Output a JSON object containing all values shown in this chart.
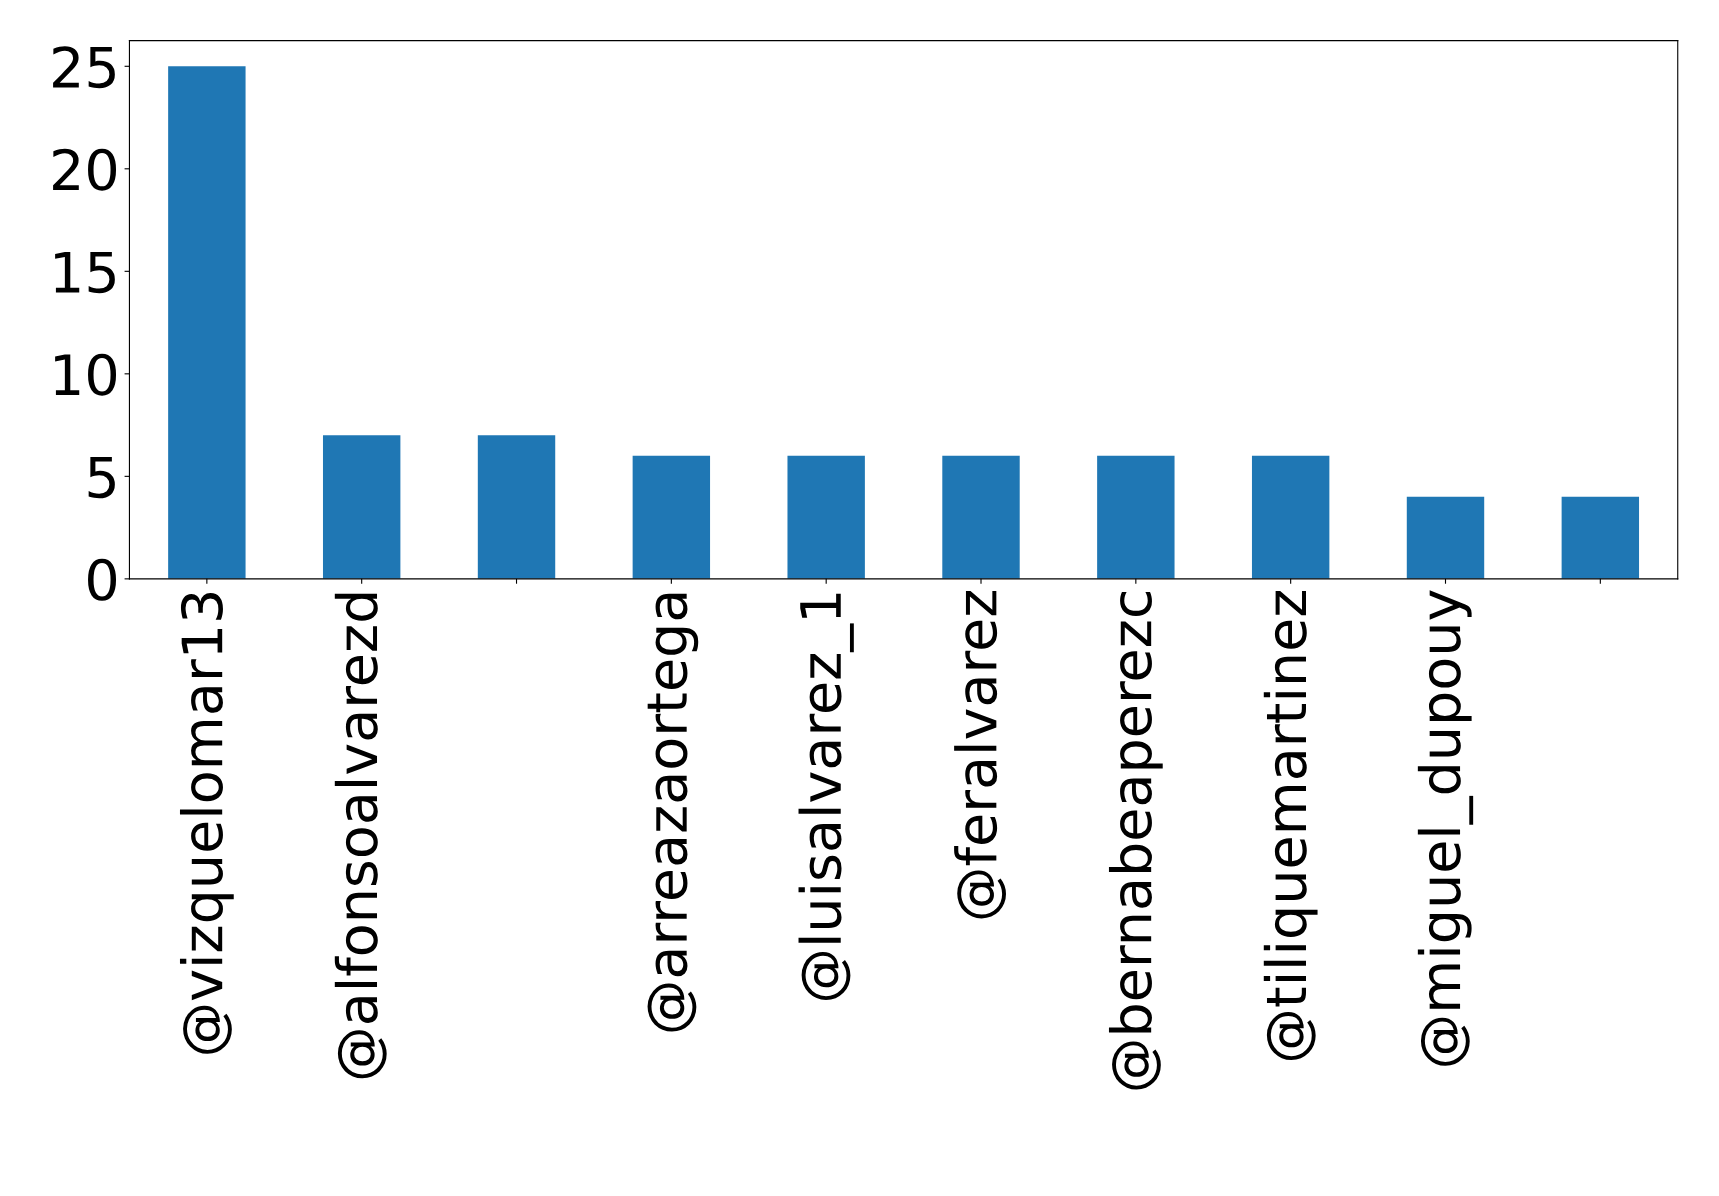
{
  "chart_data": {
    "type": "bar",
    "categories": [
      "@vizquelomar13",
      "@alfonsoalvarezd",
      null,
      "@arreazaortega",
      "@luisalvarez_1",
      "@feralvarez",
      "@bernabeaperezc",
      "@tiliquemartinez",
      "@miguel_dupouy",
      null
    ],
    "values": [
      25,
      7,
      7,
      6,
      6,
      6,
      6,
      6,
      4,
      4
    ],
    "color": "#1f77b4",
    "ylim": [
      0,
      26.25
    ],
    "yticks": [
      0,
      5,
      10,
      15,
      20,
      25
    ],
    "grid": false,
    "legend": false
  }
}
